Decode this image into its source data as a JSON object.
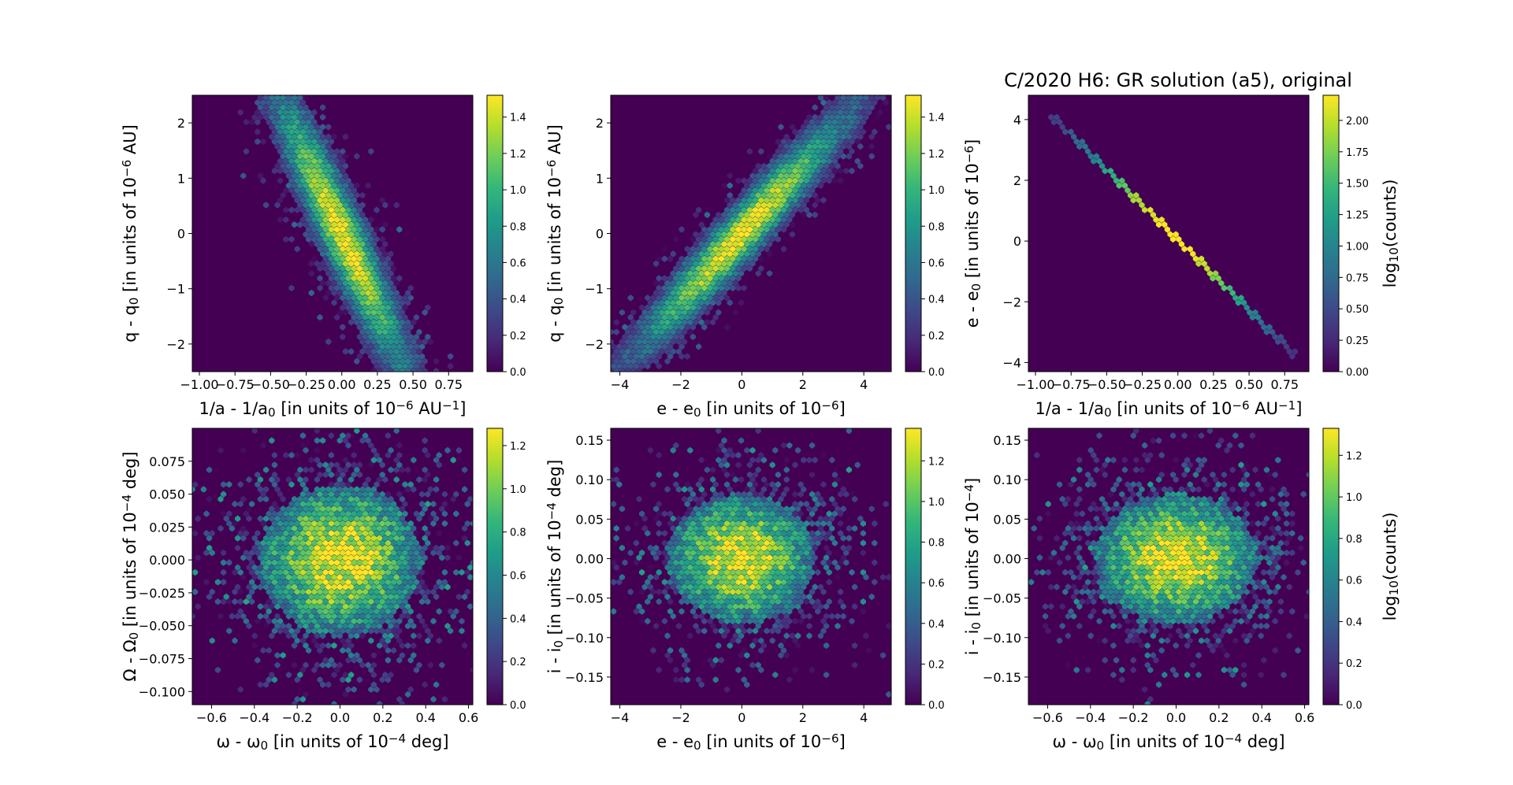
{
  "figure": {
    "title": "C/2020 H6: GR solution (a5), original"
  },
  "colormap": [
    "#440154",
    "#482878",
    "#3e4989",
    "#31688e",
    "#26828e",
    "#1f9e89",
    "#35b779",
    "#6ece58",
    "#b5de2b",
    "#fde725"
  ],
  "chart_data": [
    {
      "type": "heatmap",
      "subtype": "hexbin",
      "xlabel": "1/a - 1/a_0 [in units of 10^-6 AU^-1]",
      "ylabel": "q - q_0 [in units of 10^-6 AU]",
      "xlim": [
        -1.05,
        0.92
      ],
      "ylim": [
        -2.5,
        2.5
      ],
      "xticks": [
        -1.0,
        -0.75,
        -0.5,
        -0.25,
        0.0,
        0.25,
        0.5,
        0.75
      ],
      "xtick_labels": [
        "−1.00",
        "−0.75",
        "−0.50",
        "−0.25",
        "0.00",
        "0.25",
        "0.50",
        "0.75"
      ],
      "yticks": [
        -2,
        -1,
        0,
        1,
        2
      ],
      "ytick_labels": [
        "−2",
        "−1",
        "0",
        "1",
        "2"
      ],
      "colorbar": {
        "label": "",
        "range": [
          0,
          1.52
        ],
        "ticks": [
          0.0,
          0.2,
          0.4,
          0.6,
          0.8,
          1.0,
          1.2,
          1.4
        ],
        "tick_labels": [
          "0.0",
          "0.2",
          "0.4",
          "0.6",
          "0.8",
          "1.0",
          "1.2",
          "1.4"
        ]
      },
      "distribution": {
        "shape": "correlated-ellipse",
        "center": [
          0.0,
          0.0
        ],
        "sigma_major": 0.85,
        "sigma_minor": 0.12,
        "axis_direction": [
          -0.35,
          2.0
        ],
        "max_log10_counts": 1.5
      }
    },
    {
      "type": "heatmap",
      "subtype": "hexbin",
      "xlabel": "e - e_0 [in units of 10^-6]",
      "ylabel": "q - q_0 [in units of 10^-6 AU]",
      "xlim": [
        -4.3,
        4.9
      ],
      "ylim": [
        -2.5,
        2.5
      ],
      "xticks": [
        -4,
        -2,
        0,
        2,
        4
      ],
      "xtick_labels": [
        "−4",
        "−2",
        "0",
        "2",
        "4"
      ],
      "yticks": [
        -2,
        -1,
        0,
        1,
        2
      ],
      "ytick_labels": [
        "−2",
        "−1",
        "0",
        "1",
        "2"
      ],
      "colorbar": {
        "label": "",
        "range": [
          0,
          1.52
        ],
        "ticks": [
          0.0,
          0.2,
          0.4,
          0.6,
          0.8,
          1.0,
          1.2,
          1.4
        ],
        "tick_labels": [
          "0.0",
          "0.2",
          "0.4",
          "0.6",
          "0.8",
          "1.0",
          "1.2",
          "1.4"
        ]
      },
      "distribution": {
        "shape": "correlated-ellipse",
        "center": [
          0.0,
          0.0
        ],
        "sigma_major": 0.85,
        "sigma_minor": 0.12,
        "axis_direction": [
          1.6,
          1.0
        ],
        "max_log10_counts": 1.5
      }
    },
    {
      "type": "heatmap",
      "subtype": "hexbin",
      "title": "C/2020 H6: GR solution (a5), original",
      "xlabel": "1/a - 1/a_0 [in units of 10^-6 AU^-1]",
      "ylabel": "e - e_0 [in units of 10^-6]",
      "xlim": [
        -1.05,
        0.92
      ],
      "ylim": [
        -4.3,
        4.8
      ],
      "xticks": [
        -1.0,
        -0.75,
        -0.5,
        -0.25,
        0.0,
        0.25,
        0.5,
        0.75
      ],
      "xtick_labels": [
        "−1.00",
        "−0.75",
        "−0.50",
        "−0.25",
        "0.00",
        "0.25",
        "0.50",
        "0.75"
      ],
      "yticks": [
        -4,
        -2,
        0,
        2,
        4
      ],
      "ytick_labels": [
        "−4",
        "−2",
        "0",
        "2",
        "4"
      ],
      "colorbar": {
        "label": "log10(counts)",
        "range": [
          0,
          2.2
        ],
        "ticks": [
          0.0,
          0.25,
          0.5,
          0.75,
          1.0,
          1.25,
          1.5,
          1.75,
          2.0
        ],
        "tick_labels": [
          "0.00",
          "0.25",
          "0.50",
          "0.75",
          "1.00",
          "1.25",
          "1.50",
          "1.75",
          "2.00"
        ]
      },
      "distribution": {
        "shape": "line",
        "from": [
          -0.88,
          4.1
        ],
        "to": [
          0.82,
          -3.75
        ],
        "max_log10_counts": 2.2
      }
    },
    {
      "type": "heatmap",
      "subtype": "hexbin",
      "xlabel": "ω - ω_0 [in units of 10^-4 deg]",
      "ylabel": "Ω - Ω_0 [in units of 10^-4 deg]",
      "xlim": [
        -0.69,
        0.62
      ],
      "ylim": [
        -0.11,
        0.1
      ],
      "xticks": [
        -0.6,
        -0.4,
        -0.2,
        0.0,
        0.2,
        0.4,
        0.6
      ],
      "xtick_labels": [
        "−0.6",
        "−0.4",
        "−0.2",
        "0.0",
        "0.2",
        "0.4",
        "0.6"
      ],
      "yticks": [
        -0.1,
        -0.075,
        -0.05,
        -0.025,
        0.0,
        0.025,
        0.05,
        0.075
      ],
      "ytick_labels": [
        "−0.100",
        "−0.075",
        "−0.050",
        "−0.025",
        "0.000",
        "0.025",
        "0.050",
        "0.075"
      ],
      "colorbar": {
        "label": "",
        "range": [
          0,
          1.28
        ],
        "ticks": [
          0.0,
          0.2,
          0.4,
          0.6,
          0.8,
          1.0,
          1.2
        ],
        "tick_labels": [
          "0.0",
          "0.2",
          "0.4",
          "0.6",
          "0.8",
          "1.0",
          "1.2"
        ]
      },
      "distribution": {
        "shape": "round-blob",
        "center": [
          0.0,
          0.0
        ],
        "radius": [
          0.3,
          0.045
        ],
        "max_log10_counts": 1.25
      }
    },
    {
      "type": "heatmap",
      "subtype": "hexbin",
      "xlabel": "e - e_0 [in units of 10^-6]",
      "ylabel": "i - i_0 [in units of 10^-4 deg]",
      "xlim": [
        -4.3,
        4.9
      ],
      "ylim": [
        -0.185,
        0.165
      ],
      "xticks": [
        -4,
        -2,
        0,
        2,
        4
      ],
      "xtick_labels": [
        "−4",
        "−2",
        "0",
        "2",
        "4"
      ],
      "yticks": [
        -0.15,
        -0.1,
        -0.05,
        0.0,
        0.05,
        0.1,
        0.15
      ],
      "ytick_labels": [
        "−0.15",
        "−0.10",
        "−0.05",
        "0.00",
        "0.05",
        "0.10",
        "0.15"
      ],
      "colorbar": {
        "label": "",
        "range": [
          0,
          1.36
        ],
        "ticks": [
          0.0,
          0.2,
          0.4,
          0.6,
          0.8,
          1.0,
          1.2
        ],
        "tick_labels": [
          "0.0",
          "0.2",
          "0.4",
          "0.6",
          "0.8",
          "1.0",
          "1.2"
        ]
      },
      "distribution": {
        "shape": "round-blob",
        "center": [
          0.0,
          0.0
        ],
        "radius": [
          1.9,
          0.065
        ],
        "max_log10_counts": 1.3
      }
    },
    {
      "type": "heatmap",
      "subtype": "hexbin",
      "xlabel": "ω - ω_0 [in units of 10^-4 deg]",
      "ylabel": "i - i_0 [in units of 10^-4]",
      "xlim": [
        -0.69,
        0.62
      ],
      "ylim": [
        -0.185,
        0.165
      ],
      "xticks": [
        -0.6,
        -0.4,
        -0.2,
        0.0,
        0.2,
        0.4,
        0.6
      ],
      "xtick_labels": [
        "−0.6",
        "−0.4",
        "−0.2",
        "0.0",
        "0.2",
        "0.4",
        "0.6"
      ],
      "yticks": [
        -0.15,
        -0.1,
        -0.05,
        0.0,
        0.05,
        0.1,
        0.15
      ],
      "ytick_labels": [
        "−0.15",
        "−0.10",
        "−0.05",
        "0.00",
        "0.05",
        "0.10",
        "0.15"
      ],
      "colorbar": {
        "label": "log10(counts)",
        "range": [
          0,
          1.33
        ],
        "ticks": [
          0.0,
          0.2,
          0.4,
          0.6,
          0.8,
          1.0,
          1.2
        ],
        "tick_labels": [
          "0.0",
          "0.2",
          "0.4",
          "0.6",
          "0.8",
          "1.0",
          "1.2"
        ]
      },
      "distribution": {
        "shape": "round-blob",
        "center": [
          0.0,
          0.0
        ],
        "radius": [
          0.3,
          0.065
        ],
        "max_log10_counts": 1.3
      }
    }
  ]
}
